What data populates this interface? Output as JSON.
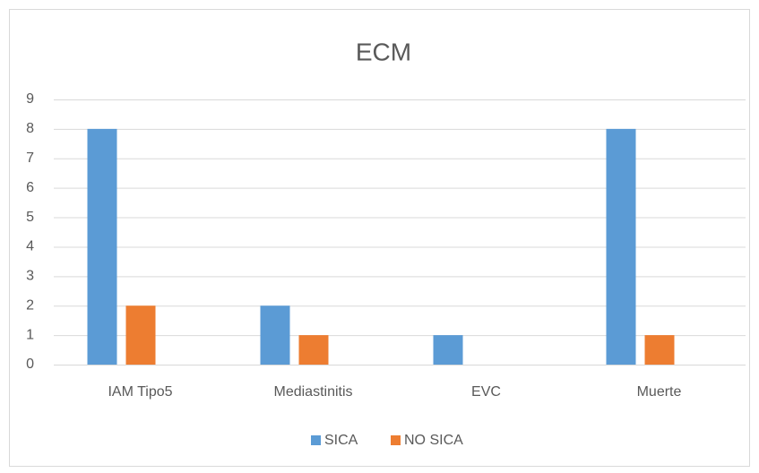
{
  "chart_data": {
    "type": "bar",
    "title": "ECM",
    "categories": [
      "IAM Tipo5",
      "Mediastinitis",
      "EVC",
      "Muerte"
    ],
    "series": [
      {
        "name": "SICA",
        "color": "#5b9bd5",
        "values": [
          8,
          2,
          1,
          8
        ]
      },
      {
        "name": "NO SICA",
        "color": "#ed7d31",
        "values": [
          2,
          1,
          0,
          1
        ]
      }
    ],
    "ylim": [
      0,
      9
    ],
    "yticks": [
      0,
      1,
      2,
      3,
      4,
      5,
      6,
      7,
      8,
      9
    ],
    "grid": true,
    "legend": "bottom"
  }
}
